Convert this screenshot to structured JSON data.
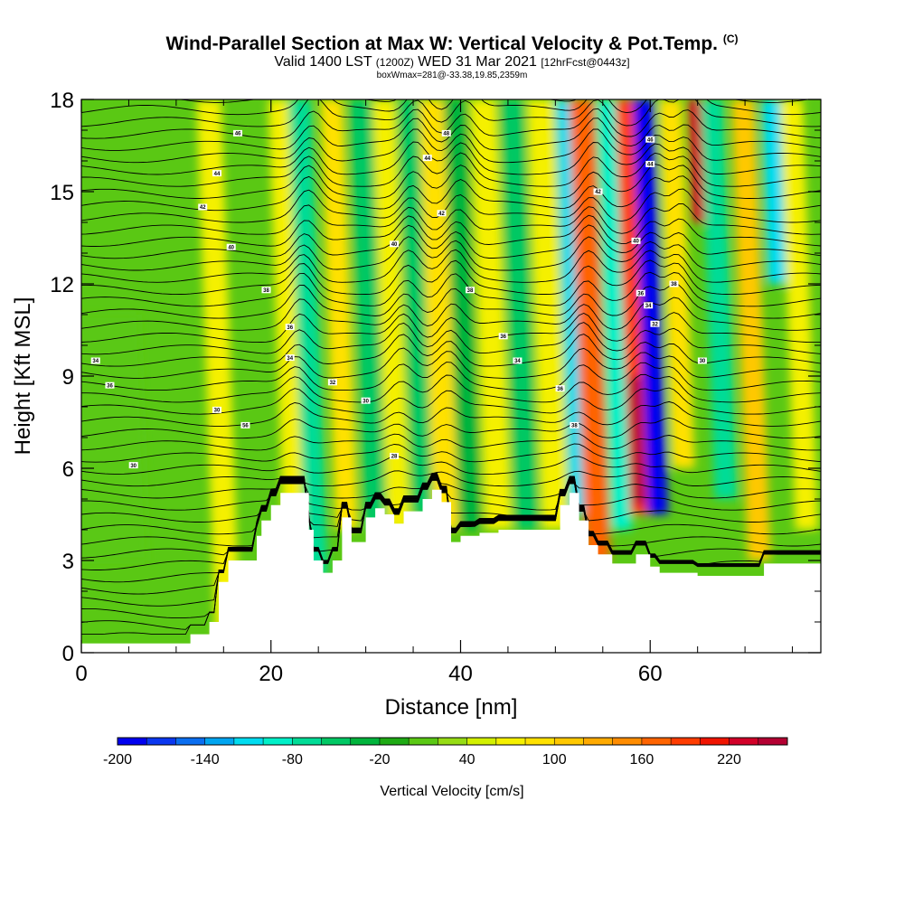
{
  "header": {
    "title": "Wind-Parallel Section at Max W: Vertical Velocity & Pot.Temp.",
    "copyright": "(C)",
    "valid_a": "Valid 1400 LST",
    "valid_b": "(1200Z)",
    "valid_c": "WED 31 Mar 2021",
    "valid_d": "[12hrFcst@0443z]",
    "boxinfo": "boxWmax=281@-33.38,19.85,2359m"
  },
  "chart_data": {
    "type": "heatmap",
    "xlabel": "Distance [nm]",
    "ylabel": "Height [Kft MSL]",
    "xlim": [
      0,
      78
    ],
    "ylim": [
      0,
      18
    ],
    "xticks": [
      0,
      20,
      40,
      60
    ],
    "yticks": [
      0,
      3,
      6,
      9,
      12,
      15,
      18
    ],
    "grid": false,
    "colorbar": {
      "label": "Vertical Velocity [cm/s]",
      "min": -200,
      "max": 260,
      "step": 20,
      "tick_values": [
        -200,
        -140,
        -80,
        -20,
        40,
        100,
        160,
        220
      ],
      "tick_labels": [
        "-200",
        "-140",
        "-80",
        "-20",
        "40",
        "100",
        "160",
        "220"
      ],
      "colors": [
        "#0000f0",
        "#0a37f0",
        "#0a6ef0",
        "#00a5f0",
        "#00dcf0",
        "#00f0c8",
        "#00dc96",
        "#00c864",
        "#00b43c",
        "#1eaa14",
        "#5ac814",
        "#96dc14",
        "#d2f000",
        "#f5f000",
        "#ffe100",
        "#ffc800",
        "#ffaa00",
        "#ff8c00",
        "#ff6400",
        "#ff3c00",
        "#f01400",
        "#d20028",
        "#b40032"
      ]
    },
    "velocity_features": [
      {
        "x": 3,
        "w": 4,
        "ztop": 11,
        "zbot": 3,
        "w_cms": 10
      },
      {
        "x": 15.5,
        "w": 1.3,
        "ztop": 18,
        "zbot": 0,
        "w_cms": 60
      },
      {
        "x": 22.5,
        "w": 1.2,
        "ztop": 18,
        "zbot": 4,
        "w_cms": 60
      },
      {
        "x": 24.8,
        "w": 1.2,
        "ztop": 18,
        "zbot": 2.5,
        "w_cms": -80
      },
      {
        "x": 28,
        "w": 1.2,
        "ztop": 18,
        "zbot": 4,
        "w_cms": 80
      },
      {
        "x": 31,
        "w": 1.2,
        "ztop": 18,
        "zbot": 4,
        "w_cms": -50
      },
      {
        "x": 33.5,
        "w": 1.2,
        "ztop": 18,
        "zbot": 4,
        "w_cms": 60
      },
      {
        "x": 36,
        "w": 1.1,
        "ztop": 18,
        "zbot": 4.5,
        "w_cms": -50
      },
      {
        "x": 38.5,
        "w": 1.3,
        "ztop": 18,
        "zbot": 4,
        "w_cms": 80
      },
      {
        "x": 41,
        "w": 1.2,
        "ztop": 18,
        "zbot": 4,
        "w_cms": -40
      },
      {
        "x": 44,
        "w": 1.4,
        "ztop": 18,
        "zbot": 4,
        "w_cms": 70
      },
      {
        "x": 47,
        "w": 1.2,
        "ztop": 18,
        "zbot": 4,
        "w_cms": -50
      },
      {
        "x": 50,
        "w": 1.4,
        "ztop": 18,
        "zbot": 4,
        "w_cms": 70
      },
      {
        "x": 52.3,
        "w": 0.8,
        "ztop": 18,
        "zbot": 4.5,
        "w_cms": -120
      },
      {
        "x": 54.5,
        "w": 1.3,
        "ztop": 18,
        "zbot": 3,
        "w_cms": 170
      },
      {
        "x": 57,
        "w": 1.1,
        "ztop": 18,
        "zbot": 4,
        "w_cms": -100
      },
      {
        "x": 58.8,
        "w": 0.9,
        "ztop": 18,
        "zbot": 4.5,
        "w_cms": 180
      },
      {
        "x": 58.8,
        "w": 0.6,
        "ztop": 9,
        "zbot": 4.8,
        "w_cms": 281
      },
      {
        "x": 60.8,
        "w": 1.1,
        "ztop": 18,
        "zbot": 4.5,
        "w_cms": -200
      },
      {
        "x": 63.5,
        "w": 1.2,
        "ztop": 18,
        "zbot": 6,
        "w_cms": 90
      },
      {
        "x": 65.5,
        "w": 1.1,
        "ztop": 18,
        "zbot": 14,
        "w_cms": 230
      },
      {
        "x": 68,
        "w": 1.2,
        "ztop": 18,
        "zbot": 5,
        "w_cms": -80
      },
      {
        "x": 71.5,
        "w": 1.2,
        "ztop": 18,
        "zbot": 3,
        "w_cms": 100
      },
      {
        "x": 73.5,
        "w": 1.1,
        "ztop": 18,
        "zbot": 12,
        "w_cms": -120
      },
      {
        "x": 76.5,
        "w": 1.2,
        "ztop": 18,
        "zbot": 4,
        "w_cms": 70
      }
    ],
    "terrain": {
      "x": [
        0,
        11.5,
        11.5,
        13.5,
        13.5,
        14.5,
        14.5,
        15.5,
        15.5,
        18.5,
        18.5,
        19.0,
        19.0,
        20.0,
        20.0,
        21.0,
        21.0,
        24.0,
        24.0,
        24.5,
        24.5,
        25.5,
        25.5,
        26.5,
        26.5,
        27.5,
        27.5,
        28.5,
        28.5,
        30.0,
        30.0,
        31.0,
        31.0,
        32.0,
        32.0,
        33.0,
        33.0,
        34.0,
        34.0,
        36.0,
        36.0,
        37.0,
        37.0,
        38.0,
        38.0,
        39.0,
        39.0,
        40.0,
        40.0,
        42.0,
        42.0,
        43.0,
        43.0,
        44.0,
        44.0,
        50.5,
        50.5,
        51.5,
        51.5,
        52.5,
        52.5,
        53.5,
        53.5,
        54.5,
        54.5,
        56.0,
        56.0,
        58.5,
        58.5,
        60.0,
        60.0,
        61.0,
        61.0,
        65.0,
        65.0,
        72.0,
        72.0,
        78.0
      ],
      "z": [
        0.3,
        0.3,
        0.6,
        0.6,
        1.0,
        1.0,
        2.3,
        2.3,
        3.0,
        3.0,
        3.8,
        3.8,
        4.3,
        4.3,
        4.8,
        4.8,
        5.2,
        5.2,
        4.0,
        4.0,
        3.0,
        3.0,
        2.6,
        2.6,
        3.0,
        3.0,
        4.4,
        4.4,
        3.6,
        3.6,
        4.4,
        4.4,
        4.7,
        4.7,
        4.5,
        4.5,
        4.2,
        4.2,
        4.6,
        4.6,
        5.0,
        5.0,
        5.3,
        5.3,
        4.9,
        4.9,
        3.6,
        3.6,
        3.8,
        3.8,
        3.9,
        3.9,
        3.9,
        3.9,
        4.0,
        4.0,
        4.8,
        4.8,
        5.2,
        5.2,
        4.3,
        4.3,
        3.5,
        3.5,
        3.2,
        3.2,
        2.9,
        2.9,
        3.2,
        3.2,
        2.8,
        2.8,
        2.6,
        2.6,
        2.5,
        2.5,
        2.9,
        2.9
      ]
    },
    "theta_contours": {
      "first_level_kft": 0.5,
      "spacing_kft": 0.39,
      "labels": [
        {
          "text": "46",
          "x": 16.5,
          "y": 16.9
        },
        {
          "text": "44",
          "x": 14.3,
          "y": 15.6
        },
        {
          "text": "42",
          "x": 12.8,
          "y": 14.5
        },
        {
          "text": "40",
          "x": 15.8,
          "y": 13.2
        },
        {
          "text": "38",
          "x": 19.5,
          "y": 11.8
        },
        {
          "text": "36",
          "x": 22.0,
          "y": 10.6
        },
        {
          "text": "34",
          "x": 22.0,
          "y": 9.6
        },
        {
          "text": "32",
          "x": 26.5,
          "y": 8.8
        },
        {
          "text": "30",
          "x": 30.0,
          "y": 8.2
        },
        {
          "text": "28",
          "x": 33.0,
          "y": 6.4
        },
        {
          "text": "30",
          "x": 14.3,
          "y": 7.9
        },
        {
          "text": "56",
          "x": 17.3,
          "y": 7.4
        },
        {
          "text": "48",
          "x": 38.5,
          "y": 16.9
        },
        {
          "text": "44",
          "x": 36.5,
          "y": 16.1
        },
        {
          "text": "42",
          "x": 38.0,
          "y": 14.3
        },
        {
          "text": "40",
          "x": 33.0,
          "y": 13.3
        },
        {
          "text": "38",
          "x": 41.0,
          "y": 11.8
        },
        {
          "text": "36",
          "x": 44.5,
          "y": 10.3
        },
        {
          "text": "34",
          "x": 46.0,
          "y": 9.5
        },
        {
          "text": "36",
          "x": 50.5,
          "y": 8.6
        },
        {
          "text": "38",
          "x": 52.0,
          "y": 7.4
        },
        {
          "text": "42",
          "x": 54.5,
          "y": 15.0
        },
        {
          "text": "46",
          "x": 60.0,
          "y": 16.7
        },
        {
          "text": "44",
          "x": 60.0,
          "y": 15.9
        },
        {
          "text": "40",
          "x": 58.5,
          "y": 13.4
        },
        {
          "text": "36",
          "x": 59.0,
          "y": 11.7
        },
        {
          "text": "34",
          "x": 59.8,
          "y": 11.3
        },
        {
          "text": "32",
          "x": 60.5,
          "y": 10.7
        },
        {
          "text": "38",
          "x": 62.5,
          "y": 12.0
        },
        {
          "text": "30",
          "x": 65.5,
          "y": 9.5
        },
        {
          "text": "34",
          "x": 1.5,
          "y": 9.5
        },
        {
          "text": "36",
          "x": 3.0,
          "y": 8.7
        },
        {
          "text": "30",
          "x": 5.5,
          "y": 6.1
        }
      ]
    }
  }
}
